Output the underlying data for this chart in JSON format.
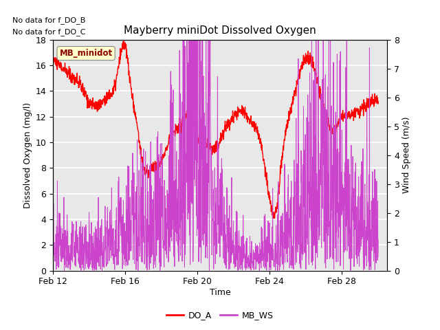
{
  "title": "Mayberry miniDot Dissolved Oxygen",
  "xlabel": "Time",
  "ylabel_left": "Dissolved Oxygen (mg/l)",
  "ylabel_right": "Wind Speed (m/s)",
  "text_no_data": [
    "No data for f_DO_B",
    "No data for f_DO_C"
  ],
  "legend_box_label": "MB_minidot",
  "legend_entries": [
    "DO_A",
    "MB_WS"
  ],
  "do_color": "#ff0000",
  "ws_color": "#cc44cc",
  "ylim_left": [
    0,
    18
  ],
  "ylim_right": [
    0.0,
    8.0
  ],
  "yticks_left": [
    0,
    2,
    4,
    6,
    8,
    10,
    12,
    14,
    16,
    18
  ],
  "yticks_right": [
    0.0,
    1.0,
    2.0,
    3.0,
    4.0,
    5.0,
    6.0,
    7.0,
    8.0
  ],
  "xtick_labels": [
    "Feb 12",
    "Feb 16",
    "Feb 20",
    "Feb 24",
    "Feb 28"
  ],
  "bg_color": "#ffffff",
  "plot_bg_color": "#e8e8e8",
  "grid_color": "#ffffff"
}
